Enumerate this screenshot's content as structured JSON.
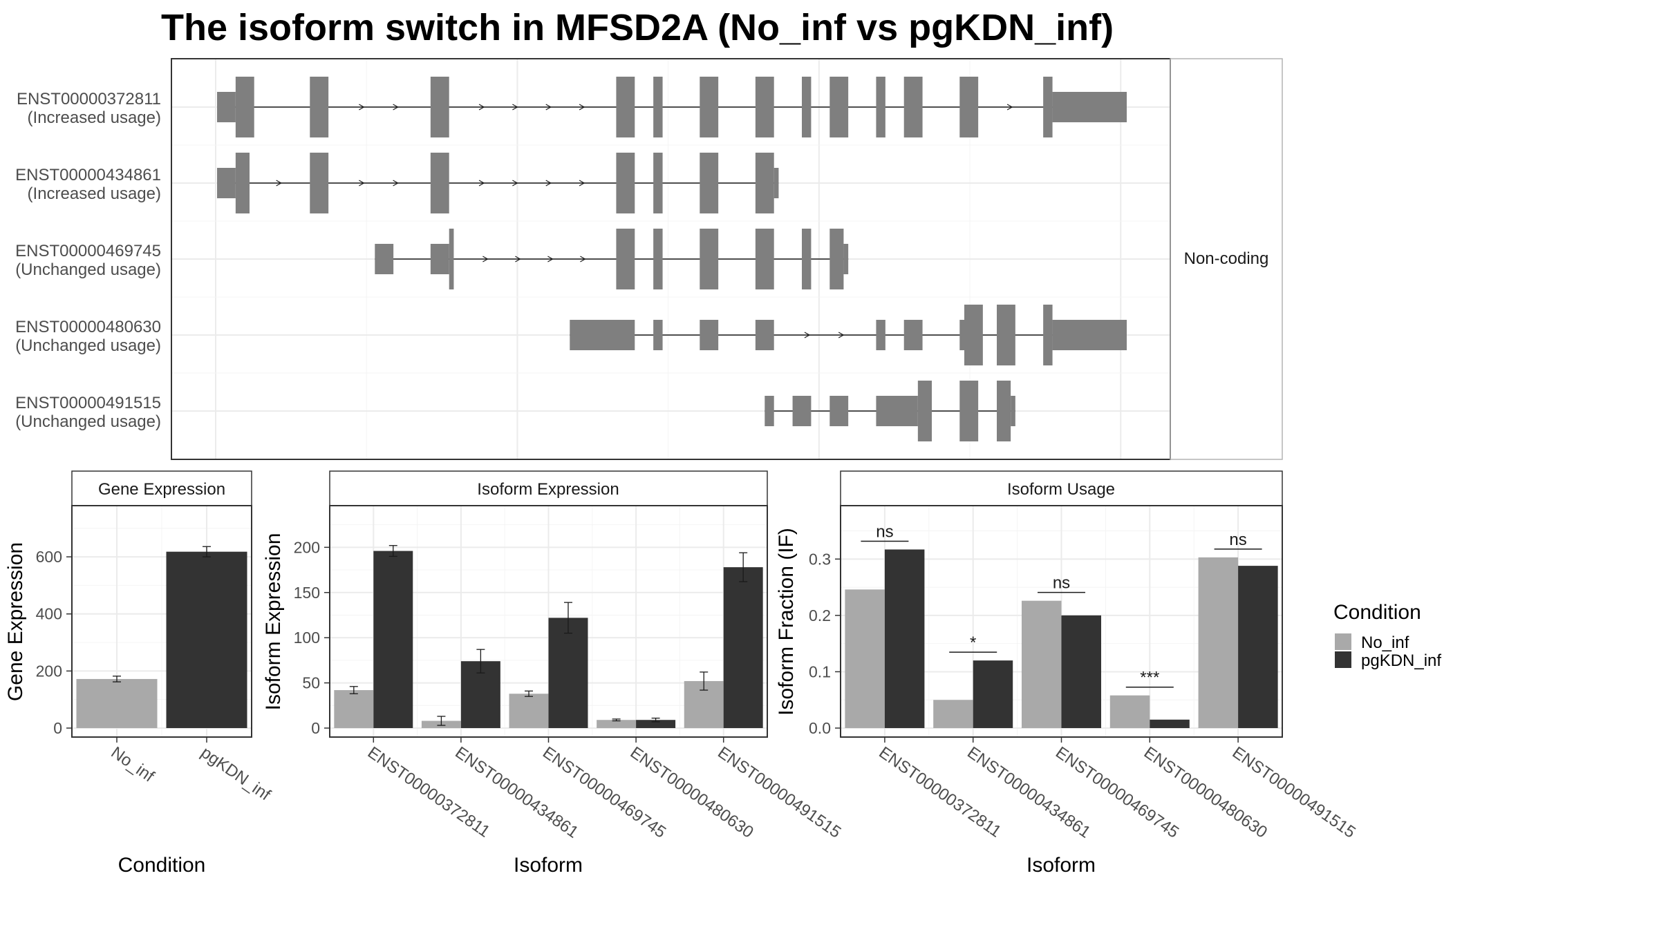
{
  "title": "The isoform switch in MFSD2A (No_inf vs pgKDN_inf)",
  "colors": {
    "no_inf": "#a9a9a9",
    "pgkdn_inf": "#333333",
    "exon": "#7f7f7f",
    "grid": "#ebebeb",
    "panel_border": "#333333",
    "strip_border": "#b3b3b3",
    "axis_text": "#4d4d4d"
  },
  "chart_data": [
    {
      "type": "table",
      "panel": "transcript-structure",
      "strip_label": "Non-coding",
      "transcripts": [
        {
          "id": "ENST00000372811",
          "usage": "(Increased usage)",
          "exons": [
            [
              0,
              2
            ],
            [
              2,
              4
            ],
            [
              10,
              12
            ],
            [
              23,
              25
            ],
            [
              43,
              45
            ],
            [
              47,
              48
            ],
            [
              52,
              54
            ],
            [
              58,
              60
            ],
            [
              63,
              64
            ],
            [
              66,
              68
            ],
            [
              71,
              72
            ],
            [
              74,
              76
            ],
            [
              80,
              82
            ],
            [
              89,
              90
            ],
            [
              90,
              98
            ]
          ],
          "coding": [
            [
              2,
              4
            ],
            [
              10,
              12
            ],
            [
              23,
              25
            ],
            [
              43,
              45
            ],
            [
              47,
              48
            ],
            [
              52,
              54
            ],
            [
              58,
              60
            ],
            [
              63,
              64
            ],
            [
              66,
              68
            ],
            [
              71,
              72
            ],
            [
              74,
              76
            ],
            [
              80,
              82
            ],
            [
              89,
              90
            ]
          ]
        },
        {
          "id": "ENST00000434861",
          "usage": "(Increased usage)",
          "exons": [
            [
              0,
              2
            ],
            [
              2,
              3.5
            ],
            [
              10,
              12
            ],
            [
              23,
              25
            ],
            [
              43,
              45
            ],
            [
              47,
              48
            ],
            [
              52,
              54
            ],
            [
              58,
              60
            ],
            [
              60,
              60.5
            ]
          ],
          "coding": [
            [
              2,
              3.5
            ],
            [
              10,
              12
            ],
            [
              23,
              25
            ],
            [
              43,
              45
            ],
            [
              47,
              48
            ],
            [
              52,
              54
            ],
            [
              58,
              60
            ]
          ]
        },
        {
          "id": "ENST00000469745",
          "usage": "(Unchanged usage)",
          "exons": [
            [
              17,
              19
            ],
            [
              23,
              25
            ],
            [
              25,
              25.5
            ],
            [
              43,
              45
            ],
            [
              47,
              48
            ],
            [
              52,
              54
            ],
            [
              58,
              60
            ],
            [
              63,
              64
            ],
            [
              66,
              67.5
            ],
            [
              67.5,
              68
            ]
          ],
          "coding": [
            [
              25,
              25.5
            ],
            [
              43,
              45
            ],
            [
              47,
              48
            ],
            [
              52,
              54
            ],
            [
              58,
              60
            ],
            [
              63,
              64
            ],
            [
              66,
              67.5
            ]
          ]
        },
        {
          "id": "ENST00000480630",
          "usage": "(Unchanged usage)",
          "exons": [
            [
              38,
              45
            ],
            [
              47,
              48
            ],
            [
              52,
              54
            ],
            [
              58,
              60
            ],
            [
              71,
              72
            ],
            [
              74,
              76
            ],
            [
              80,
              80.5
            ],
            [
              80.5,
              82.5
            ],
            [
              84,
              86
            ],
            [
              89,
              90
            ],
            [
              90,
              98
            ]
          ],
          "coding": [
            [
              80.5,
              82.5
            ],
            [
              84,
              86
            ],
            [
              89,
              90
            ]
          ]
        },
        {
          "id": "ENST00000491515",
          "usage": "(Unchanged usage)",
          "exons": [
            [
              59,
              60
            ],
            [
              62,
              64
            ],
            [
              66,
              68
            ],
            [
              71,
              75.5
            ],
            [
              75.5,
              77
            ],
            [
              80,
              82
            ],
            [
              84,
              85.5
            ],
            [
              85.5,
              86
            ]
          ],
          "coding": [
            [
              75.5,
              77
            ],
            [
              80,
              82
            ],
            [
              84,
              85.5
            ]
          ]
        }
      ]
    },
    {
      "type": "bar",
      "panel": "gene-expression",
      "title": "Gene Expression",
      "xlabel": "Condition",
      "ylabel": "Gene Expression",
      "categories": [
        "No_inf",
        "pgKDN_inf"
      ],
      "values": [
        172,
        618
      ],
      "errors": [
        10,
        18
      ],
      "ylim": [
        0,
        760
      ],
      "yticks": [
        0,
        200,
        400,
        600
      ]
    },
    {
      "type": "bar",
      "panel": "isoform-expression",
      "title": "Isoform Expression",
      "xlabel": "Isoform",
      "ylabel": "Isoform Expression",
      "categories": [
        "ENST00000372811",
        "ENST00000434861",
        "ENST00000469745",
        "ENST00000480630",
        "ENST00000491515"
      ],
      "series": [
        {
          "name": "No_inf",
          "values": [
            42,
            8,
            38,
            9,
            52
          ],
          "errors": [
            4,
            5,
            3,
            1,
            10
          ]
        },
        {
          "name": "pgKDN_inf",
          "values": [
            196,
            74,
            122,
            9,
            178
          ],
          "errors": [
            6,
            13,
            17,
            2,
            16
          ]
        }
      ],
      "ylim": [
        0,
        240
      ],
      "yticks": [
        0,
        50,
        100,
        150,
        200
      ]
    },
    {
      "type": "bar",
      "panel": "isoform-usage",
      "title": "Isoform Usage",
      "xlabel": "Isoform",
      "ylabel": "Isoform Fraction (IF)",
      "categories": [
        "ENST00000372811",
        "ENST00000434861",
        "ENST00000469745",
        "ENST00000480630",
        "ENST00000491515"
      ],
      "series": [
        {
          "name": "No_inf",
          "values": [
            0.246,
            0.05,
            0.226,
            0.058,
            0.303
          ]
        },
        {
          "name": "pgKDN_inf",
          "values": [
            0.317,
            0.12,
            0.2,
            0.015,
            0.288
          ]
        }
      ],
      "significance": [
        "ns",
        "*",
        "ns",
        "***",
        "ns"
      ],
      "ylim": [
        0,
        0.385
      ],
      "yticks": [
        "0.0",
        "0.1",
        "0.2",
        "0.3"
      ]
    }
  ],
  "legend": {
    "title": "Condition",
    "items": [
      "No_inf",
      "pgKDN_inf"
    ]
  }
}
